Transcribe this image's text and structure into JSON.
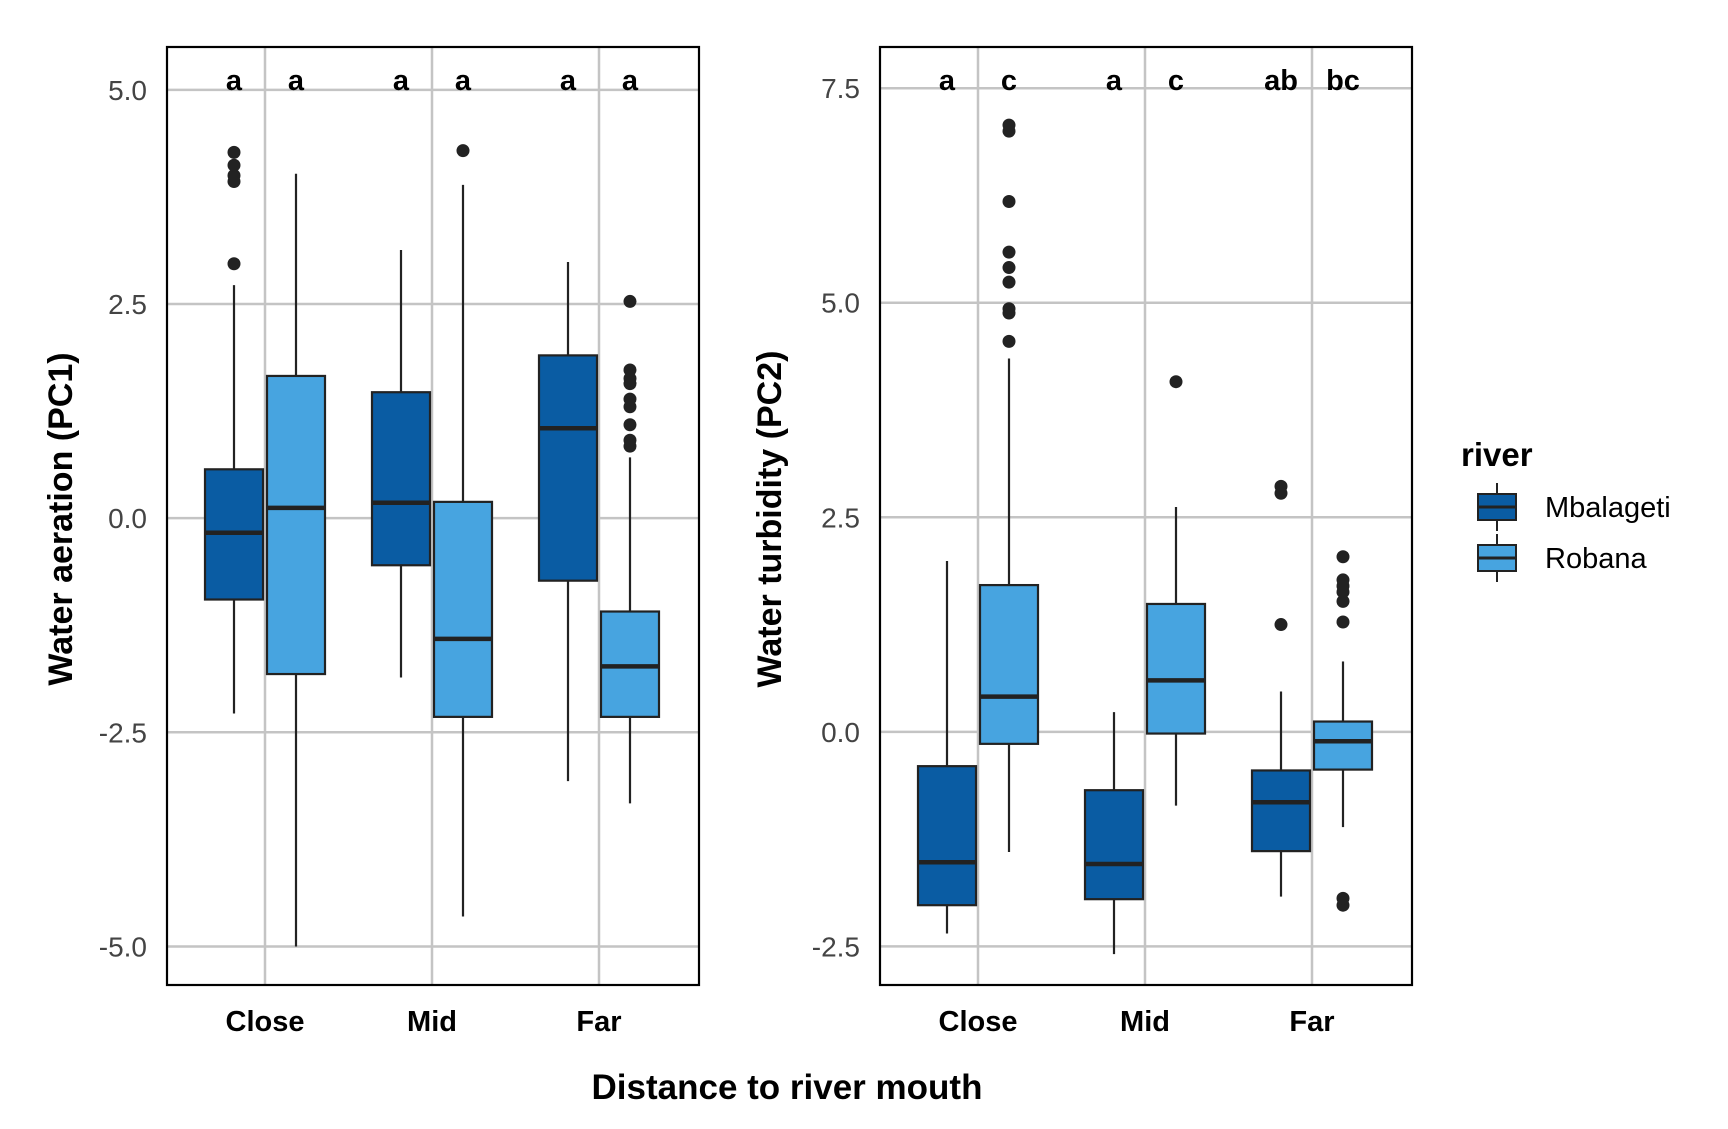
{
  "chart_data": [
    {
      "type": "box",
      "ylabel": "Water aeration (PC1)",
      "ylim": [
        -5.45,
        5.5
      ],
      "yticks": [
        5.0,
        2.5,
        0.0,
        -2.5,
        -5.0
      ],
      "ytick_labels": [
        "5.0",
        "2.5",
        "0.0",
        "-2.5",
        "-5.0"
      ],
      "categories": [
        "Close",
        "Mid",
        "Far"
      ],
      "grid": true,
      "series": [
        {
          "name": "Mbalageti",
          "boxes": [
            {
              "q1": -0.95,
              "median": -0.17,
              "q3": 0.57,
              "whisker_low": -2.28,
              "whisker_high": 2.72,
              "outliers": [
                2.97,
                3.93,
                4.0,
                4.12,
                4.27
              ]
            },
            {
              "q1": -0.55,
              "median": 0.18,
              "q3": 1.47,
              "whisker_low": -1.86,
              "whisker_high": 3.13,
              "outliers": []
            },
            {
              "q1": -0.73,
              "median": 1.05,
              "q3": 1.9,
              "whisker_low": -3.07,
              "whisker_high": 2.99,
              "outliers": []
            }
          ]
        },
        {
          "name": "Robana",
          "boxes": [
            {
              "q1": -1.82,
              "median": 0.12,
              "q3": 1.66,
              "whisker_low": -5.0,
              "whisker_high": 4.02,
              "outliers": []
            },
            {
              "q1": -2.32,
              "median": -1.41,
              "q3": 0.19,
              "whisker_low": -4.65,
              "whisker_high": 3.89,
              "outliers": [
                4.29
              ]
            },
            {
              "q1": -2.32,
              "median": -1.73,
              "q3": -1.09,
              "whisker_low": -3.33,
              "whisker_high": 0.71,
              "outliers": [
                0.84,
                0.91,
                1.09,
                1.3,
                1.39,
                1.57,
                1.63,
                1.73,
                2.53
              ]
            }
          ]
        }
      ],
      "letters": [
        [
          "a",
          "a"
        ],
        [
          "a",
          "a"
        ],
        [
          "a",
          "a"
        ]
      ]
    },
    {
      "type": "box",
      "ylabel": "Water turbidity (PC2)",
      "ylim": [
        -2.95,
        7.98
      ],
      "yticks": [
        7.5,
        5.0,
        2.5,
        0.0,
        -2.5
      ],
      "ytick_labels": [
        "7.5",
        "5.0",
        "2.5",
        "0.0",
        "-2.5"
      ],
      "categories": [
        "Close",
        "Mid",
        "Far"
      ],
      "grid": true,
      "series": [
        {
          "name": "Mbalageti",
          "boxes": [
            {
              "q1": -2.02,
              "median": -1.52,
              "q3": -0.4,
              "whisker_low": -2.35,
              "whisker_high": 1.99,
              "outliers": []
            },
            {
              "q1": -1.95,
              "median": -1.54,
              "q3": -0.68,
              "whisker_low": -2.59,
              "whisker_high": 0.23,
              "outliers": []
            },
            {
              "q1": -1.39,
              "median": -0.82,
              "q3": -0.45,
              "whisker_low": -1.92,
              "whisker_high": 0.47,
              "outliers": [
                1.25,
                2.78,
                2.86
              ]
            }
          ]
        },
        {
          "name": "Robana",
          "boxes": [
            {
              "q1": -0.14,
              "median": 0.41,
              "q3": 1.71,
              "whisker_low": -1.4,
              "whisker_high": 4.35,
              "outliers": [
                4.55,
                4.88,
                4.93,
                5.24,
                5.41,
                5.59,
                6.18,
                7.0,
                7.07
              ]
            },
            {
              "q1": -0.02,
              "median": 0.6,
              "q3": 1.49,
              "whisker_low": -0.86,
              "whisker_high": 2.62,
              "outliers": [
                4.08
              ]
            },
            {
              "q1": -0.44,
              "median": -0.11,
              "q3": 0.12,
              "whisker_low": -1.11,
              "whisker_high": 0.82,
              "outliers": [
                -2.02,
                -1.94,
                1.28,
                1.52,
                1.63,
                1.7,
                1.77,
                2.04
              ]
            }
          ]
        }
      ],
      "letters": [
        [
          "a",
          "c"
        ],
        [
          "a",
          "c"
        ],
        [
          "ab",
          "bc"
        ]
      ]
    }
  ],
  "xlabel": "Distance to river mouth",
  "legend": {
    "title": "river",
    "placement": "right",
    "entries": [
      {
        "label": "Mbalageti",
        "color": "#0a5ca3"
      },
      {
        "label": "Robana",
        "color": "#47a4e0"
      }
    ]
  },
  "colors": {
    "grid": "#c4c4c4",
    "box_line": "#222222",
    "outlier": "#222222",
    "frame": "#000000"
  }
}
